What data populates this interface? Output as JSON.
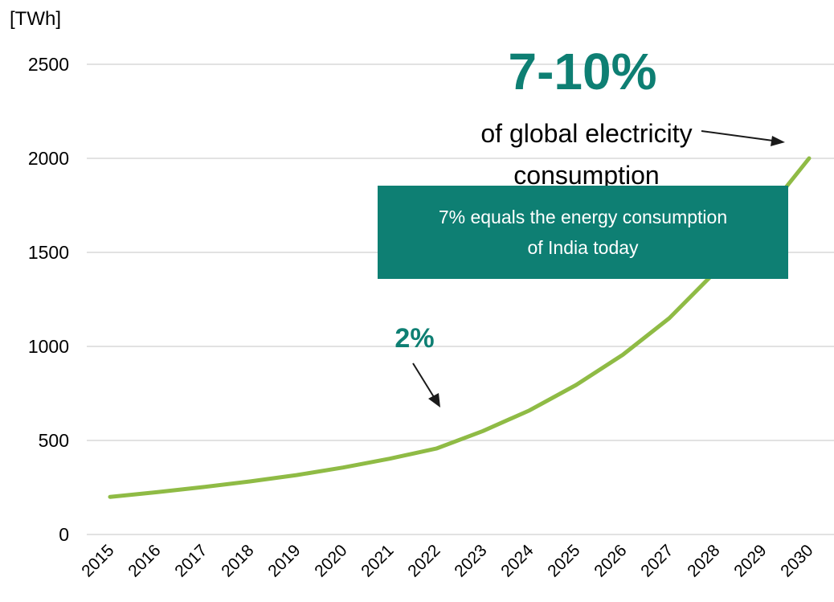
{
  "chart_data": {
    "type": "line",
    "title": "",
    "ylabel": "[TWh]",
    "xlabel": "",
    "ylim": [
      0,
      2500
    ],
    "yticks": [
      0,
      500,
      1000,
      1500,
      2000,
      2500
    ],
    "grid": true,
    "categories": [
      "2015",
      "2016",
      "2017",
      "2018",
      "2019",
      "2020",
      "2021",
      "2022",
      "2023",
      "2024",
      "2025",
      "2026",
      "2027",
      "2028",
      "2029",
      "2030"
    ],
    "series": [
      {
        "values": [
          200,
          225,
          252,
          282,
          316,
          356,
          403,
          457,
          550,
          660,
          795,
          955,
          1150,
          1400,
          1690,
          2000
        ]
      }
    ],
    "annotations": {
      "big_percent": "7-10%",
      "big_text_line1": "of global electricity",
      "big_text_line2": "consumption",
      "box_line1": "7% equals the energy consumption",
      "box_line2": "of India today",
      "small_percent": "2%"
    }
  },
  "colors": {
    "line": "#8fbb45",
    "accent": "#0e7f73",
    "grid": "#d9d9d9"
  }
}
